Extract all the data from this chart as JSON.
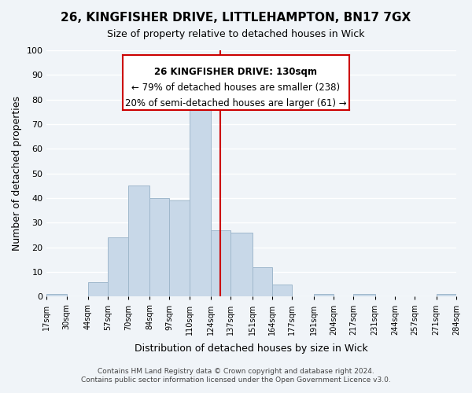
{
  "title": "26, KINGFISHER DRIVE, LITTLEHAMPTON, BN17 7GX",
  "subtitle": "Size of property relative to detached houses in Wick",
  "xlabel": "Distribution of detached houses by size in Wick",
  "ylabel": "Number of detached properties",
  "bar_edges": [
    17,
    30,
    44,
    57,
    70,
    84,
    97,
    110,
    124,
    137,
    151,
    164,
    177,
    191,
    204,
    217,
    231,
    244,
    257,
    271,
    284
  ],
  "bar_heights": [
    1,
    0,
    6,
    24,
    45,
    40,
    39,
    77,
    27,
    26,
    12,
    5,
    0,
    1,
    0,
    1,
    0,
    0,
    0,
    1
  ],
  "tick_labels": [
    "17sqm",
    "30sqm",
    "44sqm",
    "57sqm",
    "70sqm",
    "84sqm",
    "97sqm",
    "110sqm",
    "124sqm",
    "137sqm",
    "151sqm",
    "164sqm",
    "177sqm",
    "191sqm",
    "204sqm",
    "217sqm",
    "231sqm",
    "244sqm",
    "257sqm",
    "271sqm",
    "284sqm"
  ],
  "bar_color": "#c8d8e8",
  "bar_edge_color": "#a0b8cc",
  "vline_x": 130,
  "vline_color": "#cc0000",
  "ylim": [
    0,
    100
  ],
  "yticks": [
    0,
    10,
    20,
    30,
    40,
    50,
    60,
    70,
    80,
    90,
    100
  ],
  "annotation_title": "26 KINGFISHER DRIVE: 130sqm",
  "annotation_line1": "← 79% of detached houses are smaller (238)",
  "annotation_line2": "20% of semi-detached houses are larger (61) →",
  "annotation_box_color": "#ffffff",
  "annotation_border_color": "#cc0000",
  "footer1": "Contains HM Land Registry data © Crown copyright and database right 2024.",
  "footer2": "Contains public sector information licensed under the Open Government Licence v3.0.",
  "bg_color": "#f0f4f8",
  "grid_color": "#ffffff"
}
